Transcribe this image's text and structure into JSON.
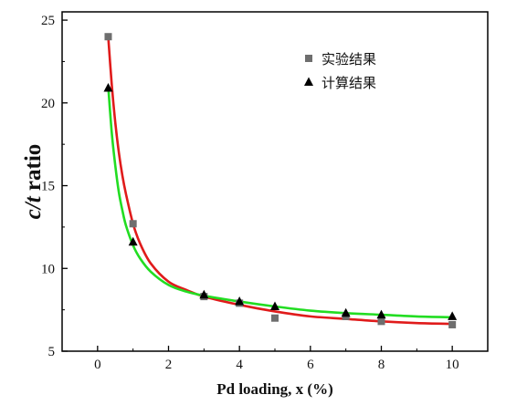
{
  "chart_data": {
    "type": "scatter",
    "xlabel": "Pd loading, x (%)",
    "ylabel_parts": [
      "c/t",
      " ratio"
    ],
    "xlim": [
      -1,
      11
    ],
    "ylim": [
      5,
      25.5
    ],
    "xticks": [
      0,
      2,
      4,
      6,
      8,
      10
    ],
    "yticks": [
      5,
      10,
      15,
      20,
      25
    ],
    "series": [
      {
        "name": "实验结果",
        "marker": "square",
        "color": "#6e6e6e",
        "x": [
          0.3,
          1.0,
          3.0,
          4.0,
          5.0,
          7.0,
          8.0,
          10.0
        ],
        "y": [
          24.0,
          12.7,
          8.3,
          7.9,
          7.0,
          7.1,
          6.8,
          6.6
        ]
      },
      {
        "name": "计算结果",
        "marker": "triangle",
        "color": "#000000",
        "x": [
          0.3,
          1.0,
          3.0,
          4.0,
          5.0,
          7.0,
          8.0,
          10.0
        ],
        "y": [
          20.9,
          11.6,
          8.4,
          8.0,
          7.7,
          7.3,
          7.2,
          7.1
        ]
      }
    ],
    "fit_curves": [
      {
        "color": "#e01b1b",
        "x": [
          0.3,
          0.4,
          0.5,
          0.6,
          0.7,
          0.8,
          1.0,
          1.2,
          1.5,
          2.0,
          2.5,
          3.0,
          4.0,
          5.0,
          6.0,
          7.0,
          8.0,
          9.0,
          10.0
        ],
        "y": [
          24.0,
          21.1,
          18.8,
          17.0,
          15.6,
          14.5,
          12.7,
          11.5,
          10.3,
          9.2,
          8.7,
          8.3,
          7.8,
          7.4,
          7.1,
          6.95,
          6.8,
          6.7,
          6.65
        ]
      },
      {
        "color": "#22dd22",
        "x": [
          0.3,
          0.4,
          0.5,
          0.6,
          0.7,
          0.8,
          1.0,
          1.2,
          1.5,
          2.0,
          2.5,
          3.0,
          4.0,
          5.0,
          6.0,
          7.0,
          8.0,
          9.0,
          10.0
        ],
        "y": [
          21.0,
          18.2,
          16.2,
          14.6,
          13.5,
          12.6,
          11.4,
          10.6,
          9.8,
          9.0,
          8.6,
          8.35,
          8.0,
          7.7,
          7.45,
          7.3,
          7.2,
          7.1,
          7.05
        ]
      }
    ],
    "legend_position": "top-right"
  }
}
